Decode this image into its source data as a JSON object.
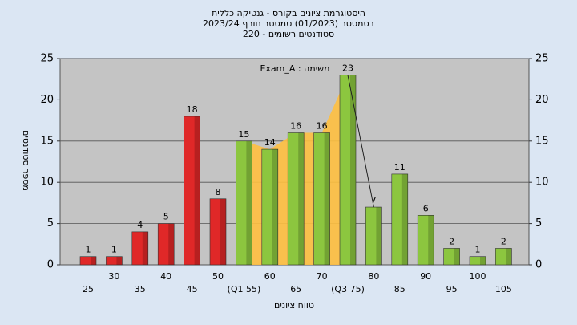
{
  "chart_data": {
    "type": "bar",
    "title": [
      "היסטוגרמת ציונים בקורס - גנטיקה כללית",
      "בסמסטר  (01/2023)  סמסטר חורף 2023/24",
      "סטודנטים רשומים - 220"
    ],
    "annotation": "משימה : Exam_A",
    "x_label": "טווח ציונים",
    "y_label": "מספר סטודנטים",
    "categories": [
      "25",
      "30",
      "35",
      "40",
      "45",
      "50",
      "(Q1 55)",
      "60",
      "65",
      "70",
      "(Q3 75)",
      "80",
      "85",
      "90",
      "95",
      "100",
      "105"
    ],
    "values": [
      1,
      1,
      4,
      5,
      18,
      8,
      15,
      14,
      16,
      16,
      23,
      7,
      11,
      6,
      2,
      1,
      2
    ],
    "colors": [
      "#e02828",
      "#e02828",
      "#e02828",
      "#e02828",
      "#e02828",
      "#e02828",
      "#8cc63f",
      "#8cc63f",
      "#8cc63f",
      "#8cc63f",
      "#8cc63f",
      "#8cc63f",
      "#8cc63f",
      "#8cc63f",
      "#8cc63f",
      "#8cc63f",
      "#8cc63f"
    ],
    "area_color": "#ffc040",
    "ylim": [
      0,
      25
    ],
    "yticks": [
      0,
      5,
      10,
      15,
      20,
      25
    ],
    "y2lim": [
      0,
      25
    ],
    "y2ticks": [
      0,
      5,
      10,
      15,
      20,
      25
    ],
    "grid": true
  }
}
